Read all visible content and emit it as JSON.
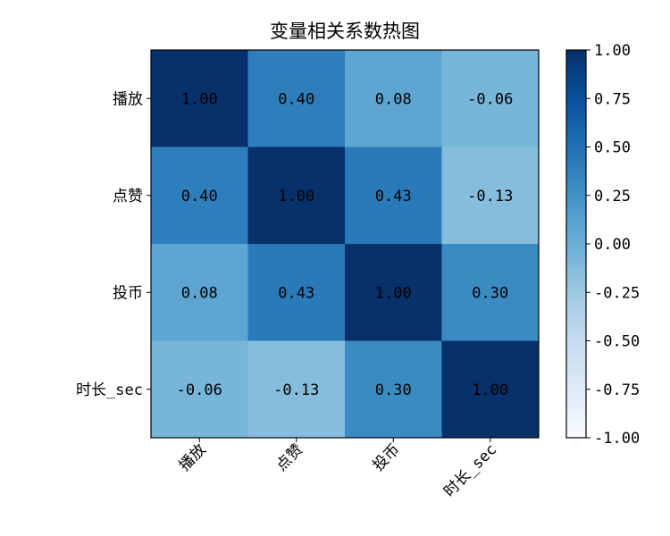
{
  "chart_data": {
    "type": "heatmap",
    "title": "变量相关系数热图",
    "categories": [
      "播放",
      "点赞",
      "投币",
      "时长_sec"
    ],
    "x_categories": [
      "播放",
      "点赞",
      "投币",
      "时长_sec"
    ],
    "y_categories": [
      "播放",
      "点赞",
      "投币",
      "时长_sec"
    ],
    "values": [
      [
        1.0,
        0.4,
        0.08,
        -0.06
      ],
      [
        0.4,
        1.0,
        0.43,
        -0.13
      ],
      [
        0.08,
        0.43,
        1.0,
        0.3
      ],
      [
        -0.06,
        -0.13,
        0.3,
        1.0
      ]
    ],
    "value_labels": [
      [
        "1.00",
        "0.40",
        "0.08",
        "-0.06"
      ],
      [
        "0.40",
        "1.00",
        "0.43",
        "-0.13"
      ],
      [
        "0.08",
        "0.43",
        "1.00",
        "0.30"
      ],
      [
        "-0.06",
        "-0.13",
        "0.30",
        "1.00"
      ]
    ],
    "colorscale": "Blues",
    "vmin": -1.0,
    "vmax": 1.0,
    "colorbar_ticks": [
      "1.00",
      "0.75",
      "0.50",
      "0.25",
      "0.00",
      "-0.25",
      "-0.50",
      "-0.75",
      "-1.00"
    ],
    "colorbar_tick_values": [
      1.0,
      0.75,
      0.5,
      0.25,
      0.0,
      -0.25,
      -0.5,
      -0.75,
      -1.0
    ],
    "x_tick_rotation": 45,
    "colorbar_placement": "right",
    "text_color": "#000000"
  }
}
